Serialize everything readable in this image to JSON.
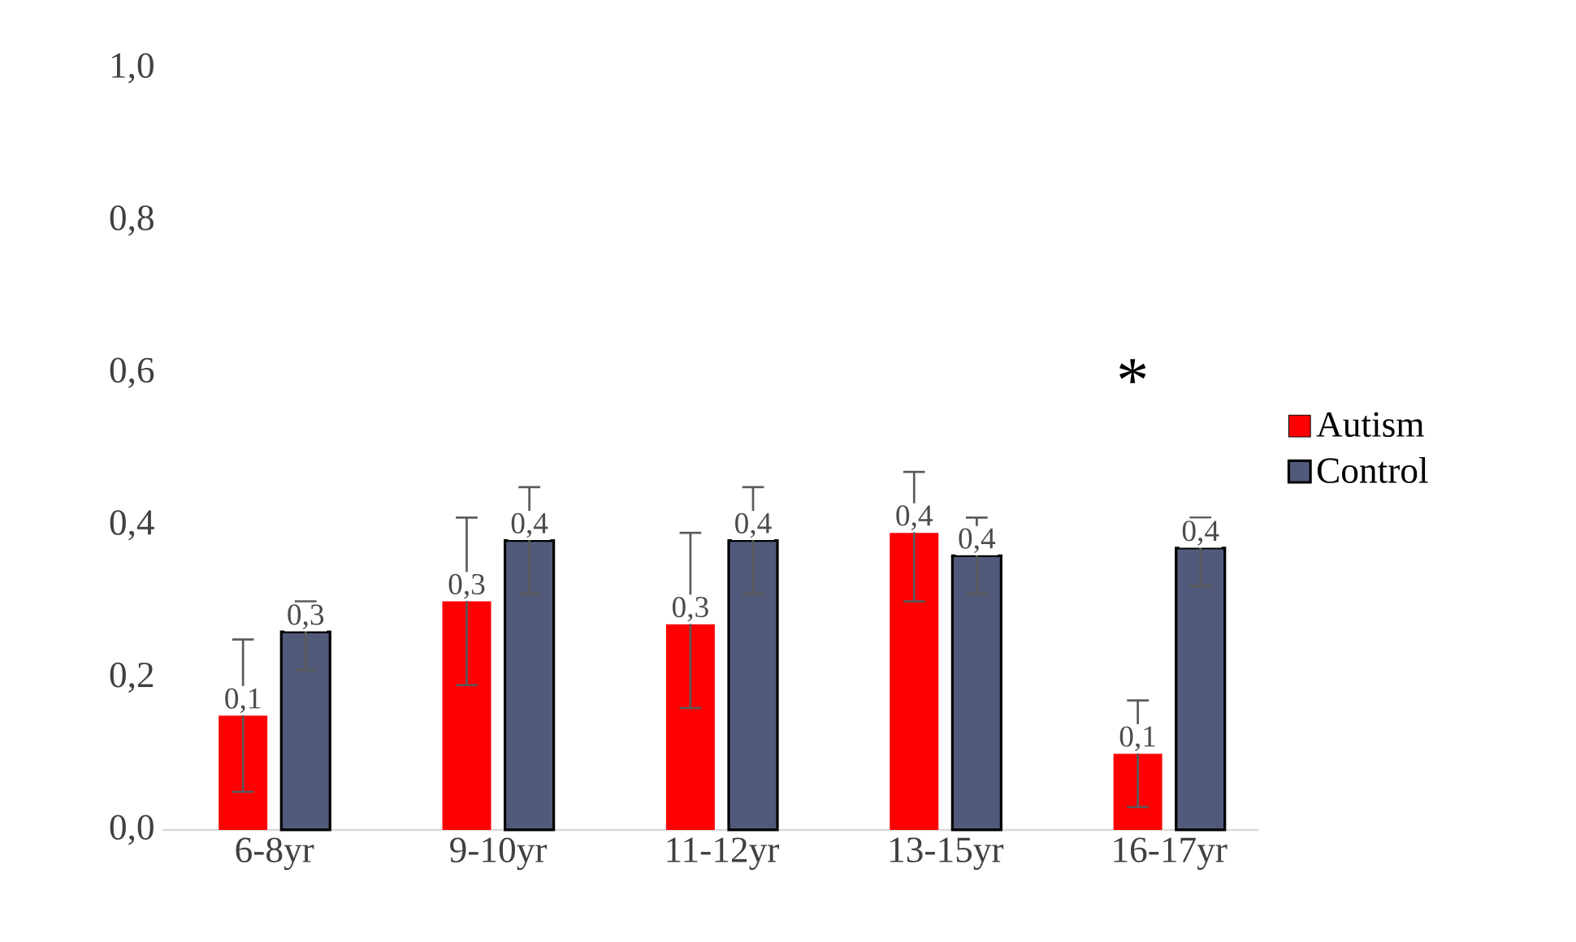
{
  "chart_data": {
    "type": "bar",
    "categories": [
      "6-8yr",
      "9-10yr",
      "11-12yr",
      "13-15yr",
      "16-17yr"
    ],
    "series": [
      {
        "name": "Autism",
        "color": "#ff0000",
        "values": [
          0.15,
          0.3,
          0.27,
          0.39,
          0.1
        ],
        "errors": [
          [
            0.05,
            0.25
          ],
          [
            0.19,
            0.41
          ],
          [
            0.16,
            0.39
          ],
          [
            0.3,
            0.47
          ],
          [
            0.03,
            0.17
          ]
        ],
        "value_labels": [
          "0,1",
          "0,3",
          "0,3",
          "0,4",
          "0,1"
        ]
      },
      {
        "name": "Control",
        "color": "#525a7c",
        "values": [
          0.26,
          0.38,
          0.38,
          0.36,
          0.37
        ],
        "errors": [
          [
            0.21,
            0.3
          ],
          [
            0.31,
            0.45
          ],
          [
            0.31,
            0.45
          ],
          [
            0.31,
            0.41
          ],
          [
            0.32,
            0.41
          ]
        ],
        "value_labels": [
          "0,3",
          "0,4",
          "0,4",
          "0,4",
          "0,4"
        ]
      }
    ],
    "ylim": [
      0,
      1
    ],
    "yticks": [
      {
        "value": 0,
        "label": "0,0"
      },
      {
        "value": 0.2,
        "label": "0,2"
      },
      {
        "value": 0.4,
        "label": "0,4"
      },
      {
        "value": 0.6,
        "label": "0,6"
      },
      {
        "value": 0.8,
        "label": "0,8"
      },
      {
        "value": 1,
        "label": "1,0"
      }
    ],
    "annotations": [
      "*"
    ],
    "legend": "right"
  }
}
